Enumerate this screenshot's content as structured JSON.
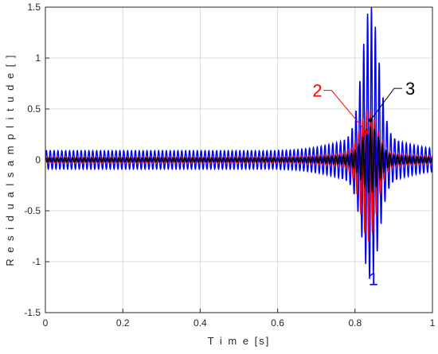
{
  "chart_data": {
    "type": "line",
    "title": "",
    "xlabel": "T i m e [s]",
    "ylabel": "R e s i d u a l s  a m p l i t u d e [ ]",
    "xlim": [
      0,
      1
    ],
    "ylim": [
      -1.5,
      1.5
    ],
    "xticks": [
      0,
      0.2,
      0.4,
      0.6,
      0.8,
      1
    ],
    "xtick_labels": [
      "0",
      "0.2",
      "0.4",
      "0.6",
      "0.8",
      "1"
    ],
    "yticks": [
      -1.5,
      -1,
      -0.5,
      0,
      0.5,
      1,
      1.5
    ],
    "ytick_labels": [
      "-1.5",
      "-1",
      "-0.5",
      "0",
      "0.5",
      "1",
      "1.5"
    ],
    "grid": true,
    "series": [
      {
        "label": "1",
        "color": "#0000ff",
        "carrier_frequency_hz": 100,
        "baseline_amplitude": 0.09,
        "peak_time_s": 0.84,
        "peak_max": 1.38,
        "peak_min": -1.04
      },
      {
        "label": "2",
        "color": "#ff0000",
        "carrier_frequency_hz": 100,
        "baseline_amplitude": 0.03,
        "peak_time_s": 0.835,
        "peak_max": 0.45,
        "peak_min": -0.75
      },
      {
        "label": "3",
        "color": "#000000",
        "carrier_frequency_hz": 100,
        "baseline_amplitude": 0.02,
        "peak_time_s": 0.84,
        "peak_max": 0.3,
        "peak_min": -0.3
      }
    ],
    "annotations": [
      {
        "text": "1",
        "color": "#0000ff",
        "x": 0.835,
        "y": -1.23
      },
      {
        "text": "2",
        "color": "#ff0000",
        "x": 0.69,
        "y": 0.62,
        "arrow_to": [
          0.83,
          0.27
        ]
      },
      {
        "text": "3",
        "color": "#000000",
        "x": 0.93,
        "y": 0.64,
        "arrow_to": [
          0.84,
          0.39
        ]
      }
    ]
  }
}
